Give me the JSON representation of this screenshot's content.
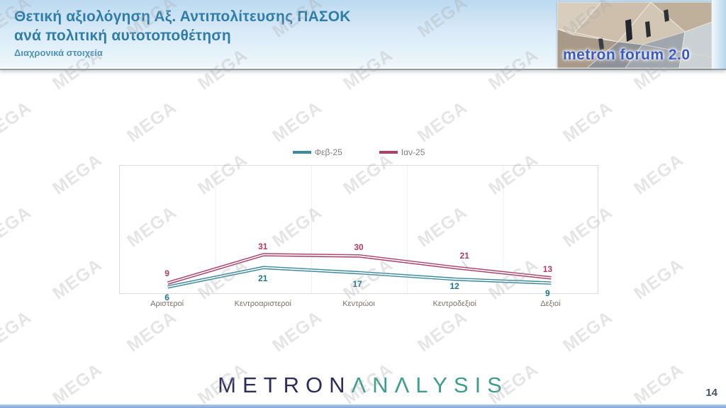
{
  "slide": {
    "page_number": "14"
  },
  "header": {
    "title_line1": "Θετική αξιολόγηση Αξ. Αντιπολίτευσης ΠΑΣΟΚ",
    "title_line2": "ανά πολιτική αυτοτοποθέτηση",
    "subtitle": "Διαχρονικά στοιχεία",
    "logo_text": "metron forum 2.0"
  },
  "footer": {
    "brand_part1": "METRON",
    "brand_part2": "ΛNΛLYSIS"
  },
  "watermark": {
    "text": "MEGA"
  },
  "chart_data": {
    "type": "line",
    "title": "Θετική αξιολόγηση Αξ. Αντιπολίτευσης ΠΑΣΟΚ ανά πολιτική αυτοτοποθέτηση",
    "categories": [
      "Αριστεροί",
      "Κεντροαριστεροί",
      "Κεντρώοι",
      "Κεντροδεξιοί",
      "Δεξιοί"
    ],
    "series": [
      {
        "name": "Φεβ-25",
        "color": "#3A8AA0",
        "label_color": "#1F758F",
        "values": [
          6,
          21,
          17,
          12,
          9
        ],
        "label_offsets": [
          [
            0,
            16
          ],
          [
            0,
            16
          ],
          [
            -2,
            17
          ],
          [
            0,
            11
          ],
          [
            -4,
            15
          ]
        ]
      },
      {
        "name": "Ιαν-25",
        "color": "#AF3E69",
        "label_color": "#B03A64",
        "values": [
          9,
          31,
          30,
          21,
          13
        ],
        "label_offsets": [
          [
            0,
            -13
          ],
          [
            0,
            -11
          ],
          [
            0,
            -11
          ],
          [
            14,
            -16
          ],
          [
            -4,
            -11
          ]
        ]
      }
    ],
    "ylim": [
      0,
      100
    ],
    "legend_position": "top-center",
    "grid": "faint vertical category separators",
    "data_labels": true,
    "leader_line": {
      "series": 1,
      "index": 3
    }
  }
}
